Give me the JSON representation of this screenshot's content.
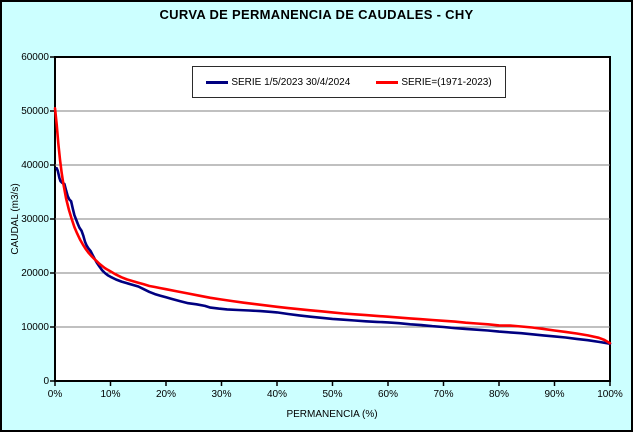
{
  "colors": {
    "background": "#CCFFFF",
    "plot_background": "#FFFFFF",
    "gridline": "#808080",
    "axis": "#000000",
    "series_current": "#000080",
    "series_historic": "#FF0000",
    "legend_border": "#2B2B2B"
  },
  "chart_data": {
    "type": "line",
    "title": "CURVA DE PERMANENCIA DE CAUDALES - CHY",
    "xlabel": "PERMANENCIA (%)",
    "ylabel": "CAUDAL (m3/s)",
    "xlim": [
      0,
      100
    ],
    "ylim": [
      0,
      60000
    ],
    "grid": "horizontal-only",
    "legend_position": "top-center-inside",
    "x_ticks": [
      {
        "value": 0,
        "label": "0%"
      },
      {
        "value": 10,
        "label": "10%"
      },
      {
        "value": 20,
        "label": "20%"
      },
      {
        "value": 30,
        "label": "30%"
      },
      {
        "value": 40,
        "label": "40%"
      },
      {
        "value": 50,
        "label": "50%"
      },
      {
        "value": 60,
        "label": "60%"
      },
      {
        "value": 70,
        "label": "70%"
      },
      {
        "value": 80,
        "label": "80%"
      },
      {
        "value": 90,
        "label": "90%"
      },
      {
        "value": 100,
        "label": "100%"
      }
    ],
    "y_ticks": [
      {
        "value": 0,
        "label": "0"
      },
      {
        "value": 10000,
        "label": "10000"
      },
      {
        "value": 20000,
        "label": "20000"
      },
      {
        "value": 30000,
        "label": "30000"
      },
      {
        "value": 40000,
        "label": "40000"
      },
      {
        "value": 50000,
        "label": "50000"
      },
      {
        "value": 60000,
        "label": "60000"
      }
    ],
    "series": [
      {
        "name": "SERIE 1/5/2023 30/4/2024",
        "color": "#000080",
        "points": [
          [
            0.3,
            39400
          ],
          [
            0.5,
            38900
          ],
          [
            0.8,
            37600
          ],
          [
            1.0,
            37000
          ],
          [
            1.3,
            36700
          ],
          [
            1.7,
            36500
          ],
          [
            2.0,
            35300
          ],
          [
            2.3,
            34200
          ],
          [
            2.6,
            33600
          ],
          [
            2.9,
            33300
          ],
          [
            3.2,
            31900
          ],
          [
            3.5,
            30700
          ],
          [
            3.8,
            29900
          ],
          [
            4.1,
            29100
          ],
          [
            4.4,
            28400
          ],
          [
            4.8,
            27800
          ],
          [
            5.1,
            26900
          ],
          [
            5.4,
            25800
          ],
          [
            5.7,
            25100
          ],
          [
            6.0,
            24600
          ],
          [
            6.4,
            24100
          ],
          [
            6.8,
            23300
          ],
          [
            7.2,
            22500
          ],
          [
            7.6,
            21800
          ],
          [
            8.0,
            21200
          ],
          [
            8.5,
            20500
          ],
          [
            9.0,
            20000
          ],
          [
            9.5,
            19600
          ],
          [
            10,
            19300
          ],
          [
            11,
            18800
          ],
          [
            12,
            18400
          ],
          [
            13,
            18100
          ],
          [
            14,
            17800
          ],
          [
            15,
            17500
          ],
          [
            16,
            17000
          ],
          [
            17,
            16500
          ],
          [
            18,
            16100
          ],
          [
            19,
            15800
          ],
          [
            20,
            15500
          ],
          [
            21,
            15200
          ],
          [
            22.5,
            14800
          ],
          [
            24,
            14400
          ],
          [
            25.5,
            14200
          ],
          [
            27,
            13900
          ],
          [
            28,
            13600
          ],
          [
            29.5,
            13400
          ],
          [
            31,
            13250
          ],
          [
            33,
            13150
          ],
          [
            35,
            13050
          ],
          [
            37,
            12950
          ],
          [
            39,
            12800
          ],
          [
            40,
            12700
          ],
          [
            42,
            12400
          ],
          [
            44,
            12150
          ],
          [
            46,
            11900
          ],
          [
            48,
            11700
          ],
          [
            50,
            11500
          ],
          [
            52,
            11350
          ],
          [
            54,
            11200
          ],
          [
            56,
            11050
          ],
          [
            58,
            10950
          ],
          [
            60,
            10850
          ],
          [
            62,
            10700
          ],
          [
            64,
            10500
          ],
          [
            66,
            10350
          ],
          [
            68,
            10150
          ],
          [
            70,
            10000
          ],
          [
            72,
            9800
          ],
          [
            74,
            9650
          ],
          [
            76,
            9500
          ],
          [
            78,
            9350
          ],
          [
            80,
            9150
          ],
          [
            82,
            9000
          ],
          [
            84,
            8850
          ],
          [
            86,
            8650
          ],
          [
            88,
            8450
          ],
          [
            90,
            8250
          ],
          [
            92,
            8050
          ],
          [
            94,
            7800
          ],
          [
            96,
            7550
          ],
          [
            98,
            7250
          ],
          [
            100,
            6900
          ]
        ]
      },
      {
        "name": "SERIE=(1971-2023)",
        "color": "#FF0000",
        "points": [
          [
            0,
            50500
          ],
          [
            0.3,
            47500
          ],
          [
            0.6,
            44000
          ],
          [
            0.9,
            41000
          ],
          [
            1.2,
            38500
          ],
          [
            1.5,
            36600
          ],
          [
            2.0,
            33800
          ],
          [
            2.5,
            31700
          ],
          [
            3.0,
            30000
          ],
          [
            3.5,
            28500
          ],
          [
            4.0,
            27300
          ],
          [
            4.5,
            26200
          ],
          [
            5.0,
            25300
          ],
          [
            5.5,
            24500
          ],
          [
            6.0,
            23800
          ],
          [
            6.5,
            23200
          ],
          [
            7.0,
            22700
          ],
          [
            7.5,
            22200
          ],
          [
            8.0,
            21700
          ],
          [
            8.5,
            21300
          ],
          [
            9.0,
            20900
          ],
          [
            9.5,
            20600
          ],
          [
            10,
            20300
          ],
          [
            11,
            19700
          ],
          [
            12,
            19200
          ],
          [
            13,
            18800
          ],
          [
            14,
            18500
          ],
          [
            15,
            18200
          ],
          [
            16,
            17900
          ],
          [
            17,
            17600
          ],
          [
            18,
            17400
          ],
          [
            19,
            17200
          ],
          [
            20,
            17000
          ],
          [
            22,
            16600
          ],
          [
            24,
            16200
          ],
          [
            26,
            15800
          ],
          [
            28,
            15400
          ],
          [
            30,
            15100
          ],
          [
            32,
            14800
          ],
          [
            34,
            14500
          ],
          [
            36,
            14250
          ],
          [
            38,
            14000
          ],
          [
            40,
            13750
          ],
          [
            42,
            13500
          ],
          [
            44,
            13300
          ],
          [
            46,
            13100
          ],
          [
            48,
            12900
          ],
          [
            50,
            12700
          ],
          [
            52,
            12500
          ],
          [
            54,
            12350
          ],
          [
            56,
            12200
          ],
          [
            58,
            12050
          ],
          [
            60,
            11900
          ],
          [
            62,
            11750
          ],
          [
            64,
            11600
          ],
          [
            66,
            11450
          ],
          [
            68,
            11300
          ],
          [
            70,
            11150
          ],
          [
            72,
            11000
          ],
          [
            74,
            10800
          ],
          [
            76,
            10650
          ],
          [
            78,
            10500
          ],
          [
            80,
            10300
          ],
          [
            82,
            10250
          ],
          [
            84,
            10100
          ],
          [
            86,
            9900
          ],
          [
            88,
            9650
          ],
          [
            90,
            9350
          ],
          [
            92,
            9100
          ],
          [
            94,
            8800
          ],
          [
            96,
            8450
          ],
          [
            98,
            8000
          ],
          [
            99,
            7600
          ],
          [
            100,
            7000
          ]
        ]
      }
    ]
  }
}
